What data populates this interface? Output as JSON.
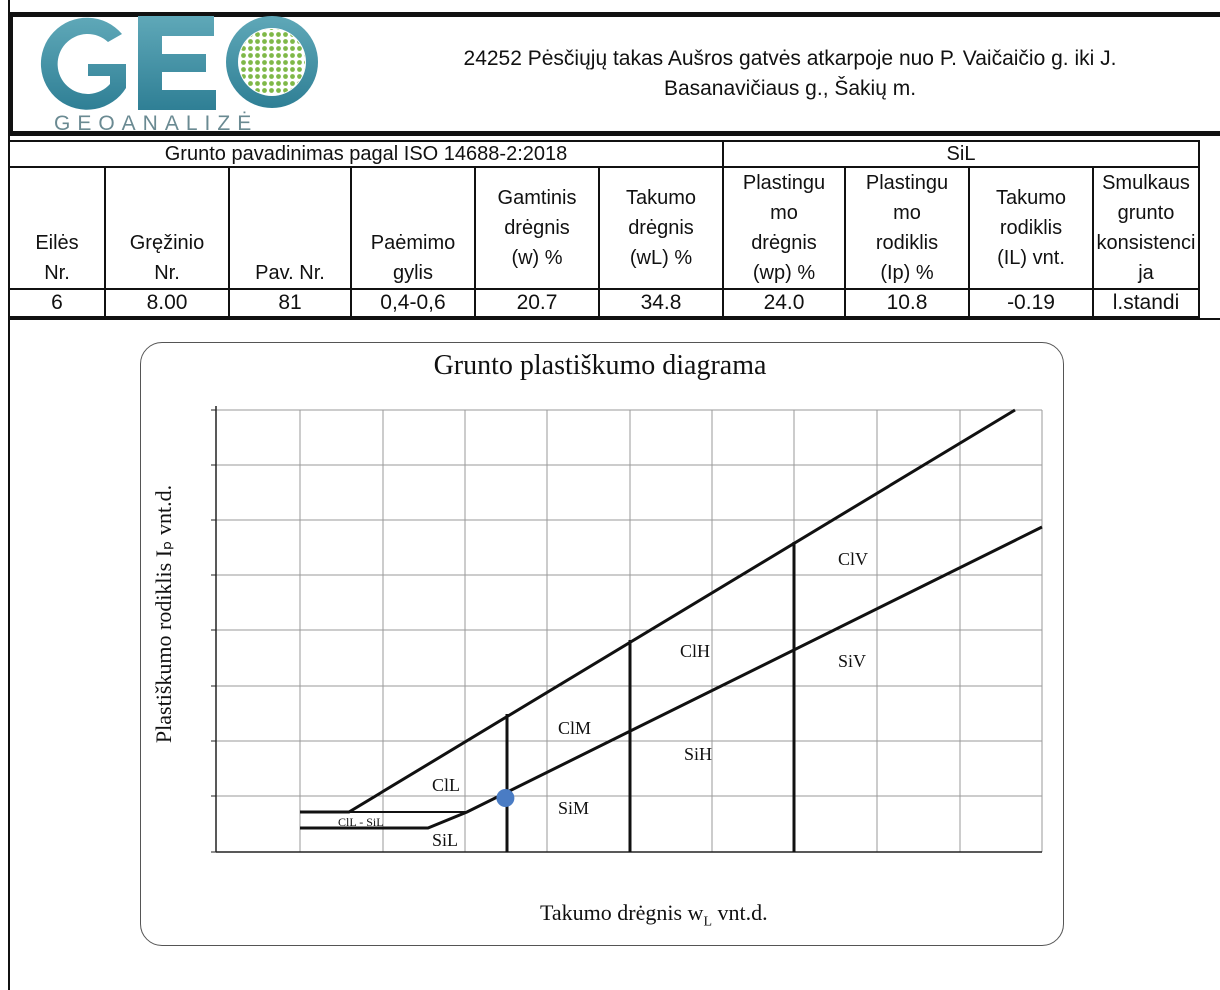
{
  "logo": {
    "text": "GEO",
    "subtitle": "GEOANALIZĖ"
  },
  "header": {
    "line1": "24252 Pėsčiųjų takas Aušros gatvės atkarpoje nuo P. Vaičaičio g. iki J.",
    "line2": "Basanavičiaus g., Šakių m."
  },
  "classification": {
    "label": "Grunto pavadinimas pagal ISO 14688-2:2018",
    "value": "SiL"
  },
  "table": {
    "headers": [
      [
        "Eilės",
        "Nr."
      ],
      [
        "Gręžinio",
        "Nr."
      ],
      [
        "Pav. Nr."
      ],
      [
        "Paėmimo",
        "gylis"
      ],
      [
        "Gamtinis",
        "drėgnis",
        "(w) %"
      ],
      [
        "Takumo",
        "drėgnis",
        "(wL) %"
      ],
      [
        "Plastingu",
        "mo",
        "drėgnis",
        "(wp) %"
      ],
      [
        "Plastingu",
        "mo",
        "rodiklis",
        "(Ip) %"
      ],
      [
        "Takumo",
        "rodiklis",
        "(IL) vnt."
      ],
      [
        "Smulkaus",
        "grunto",
        "konsistenci",
        "ja"
      ]
    ],
    "row": [
      "6",
      "8.00",
      "81",
      "0,4-0,6",
      "20.7",
      "34.8",
      "24.0",
      "10.8",
      "-0.19",
      "l.standi"
    ]
  },
  "chart": {
    "title": "Grunto plastiškumo diagrama",
    "ylabel": "Plastiškumo rodiklis Iₚ vnt.d.",
    "xlabel": "Takumo drėgnis w",
    "xlabel_sub": "L",
    "xlabel_tail": " vnt.d.",
    "zones": [
      "ClV",
      "ClH",
      "SiV",
      "ClM",
      "SiH",
      "ClL",
      "SiM",
      "ClL - SiL",
      "SiL"
    ],
    "point_color": "#4a7cc4"
  },
  "chart_data": {
    "type": "scatter",
    "title": "Grunto plastiškumo diagrama",
    "xlabel": "Takumo drėgnis wL vnt.d.",
    "ylabel": "Plastiškumo rodiklis Ip vnt.d.",
    "grid": true,
    "series": [
      {
        "values": [
          {
            "x": 34.8,
            "y": 10.8
          }
        ]
      }
    ],
    "zone_labels": [
      "ClV",
      "ClH",
      "SiV",
      "ClM",
      "SiH",
      "ClL",
      "SiM",
      "ClL - SiL",
      "SiL"
    ]
  }
}
